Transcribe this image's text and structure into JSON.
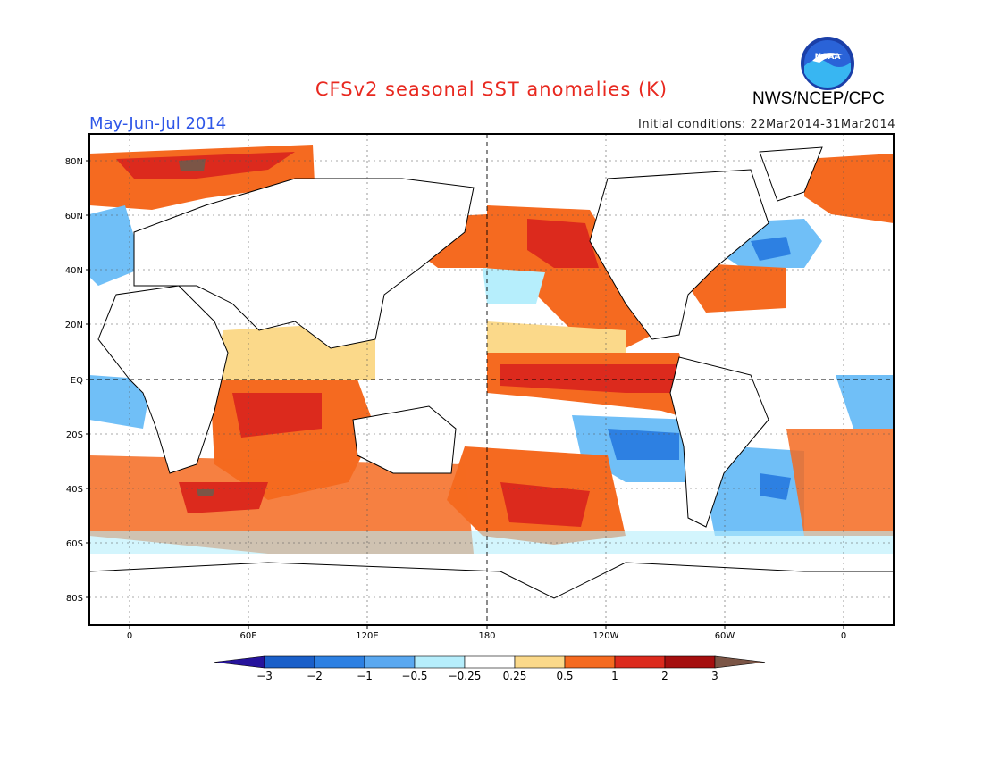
{
  "header": {
    "title": "CFSv2 seasonal SST anomalies (K)",
    "season": "May-Jun-Jul 2014",
    "initial_conditions": "Initial conditions: 22Mar2014-31Mar2014",
    "organization": "NWS/NCEP/CPC",
    "logo_text": "NOAA"
  },
  "map": {
    "lat_labels": [
      "80N",
      "60N",
      "40N",
      "20N",
      "EQ",
      "20S",
      "40S",
      "60S",
      "80S"
    ],
    "lon_labels": [
      "0",
      "60E",
      "120E",
      "180",
      "120W",
      "60W",
      "0"
    ],
    "colors": {
      "strong_warm": "#a50f0f",
      "warm": "#dc2a1d",
      "mid_warm": "#f56a20",
      "light_warm": "#fbd98a",
      "neutral": "#ffffff",
      "light_cool": "#b6eefc",
      "mid_cool": "#70bff7",
      "cool": "#3a8de6",
      "strong_cool": "#1a5fc9"
    }
  },
  "colorbar": {
    "labels": [
      "−3",
      "−2",
      "−1",
      "−0.5",
      "−0.25",
      "0.25",
      "0.5",
      "1",
      "2",
      "3"
    ],
    "colors": [
      "#26139c",
      "#1a5fc9",
      "#2d80e2",
      "#5aa8f0",
      "#b6eefc",
      "#ffffff",
      "#fbd98a",
      "#f56a20",
      "#dc2a1d",
      "#a50f0f",
      "#7b5546"
    ]
  }
}
